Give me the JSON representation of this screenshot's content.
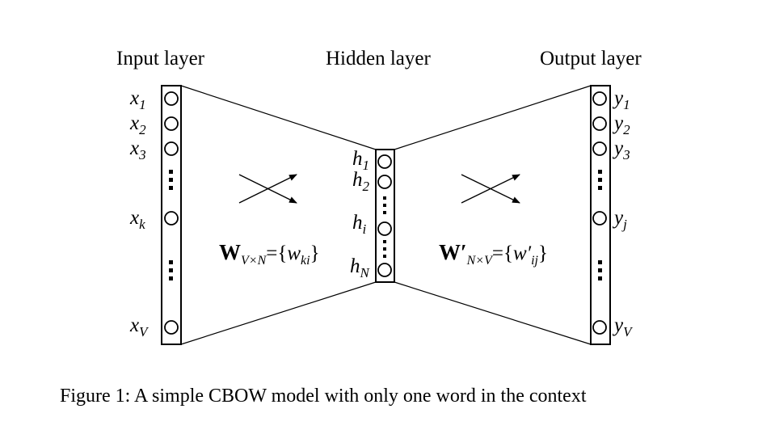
{
  "titles": {
    "input": "Input layer",
    "hidden": "Hidden layer",
    "output": "Output layer"
  },
  "input_nodes": [
    {
      "base": "x",
      "sub": "1"
    },
    {
      "base": "x",
      "sub": "2"
    },
    {
      "base": "x",
      "sub": "3"
    },
    {
      "base": "x",
      "sub": "k"
    },
    {
      "base": "x",
      "sub": "V"
    }
  ],
  "hidden_nodes": [
    {
      "base": "h",
      "sub": "1"
    },
    {
      "base": "h",
      "sub": "2"
    },
    {
      "base": "h",
      "sub": "i"
    },
    {
      "base": "h",
      "sub": "N"
    }
  ],
  "output_nodes": [
    {
      "base": "y",
      "sub": "1"
    },
    {
      "base": "y",
      "sub": "2"
    },
    {
      "base": "y",
      "sub": "3"
    },
    {
      "base": "y",
      "sub": "j"
    },
    {
      "base": "y",
      "sub": "V"
    }
  ],
  "weights": {
    "input_hidden": {
      "symbol": "W",
      "sub": "V×N",
      "eq": "={",
      "elem": "w",
      "elem_sub": "ki",
      "close": "}"
    },
    "hidden_output": {
      "symbol": "W′",
      "sub": "N×V",
      "eq": "={",
      "elem": "w′",
      "elem_sub": "ij",
      "close": "}"
    }
  },
  "caption": "Figure 1: A simple CBOW model with only one word in the context"
}
